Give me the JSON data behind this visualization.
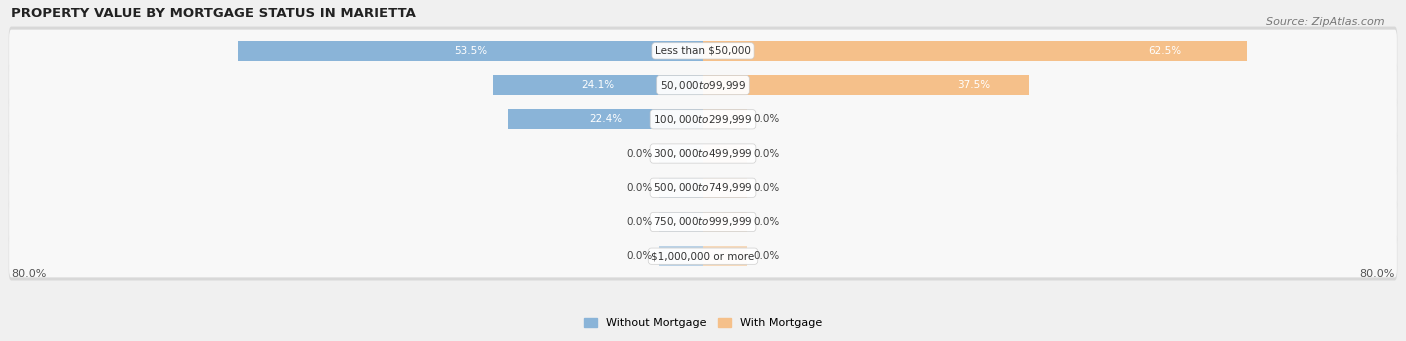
{
  "title": "PROPERTY VALUE BY MORTGAGE STATUS IN MARIETTA",
  "source": "Source: ZipAtlas.com",
  "categories": [
    "Less than $50,000",
    "$50,000 to $99,999",
    "$100,000 to $299,999",
    "$300,000 to $499,999",
    "$500,000 to $749,999",
    "$750,000 to $999,999",
    "$1,000,000 or more"
  ],
  "without_mortgage": [
    53.5,
    24.1,
    22.4,
    0.0,
    0.0,
    0.0,
    0.0
  ],
  "with_mortgage": [
    62.5,
    37.5,
    0.0,
    0.0,
    0.0,
    0.0,
    0.0
  ],
  "color_without": "#8ab4d8",
  "color_with": "#f5c08a",
  "axis_label_left": "80.0%",
  "axis_label_right": "80.0%",
  "xlim": 80.0,
  "bar_height": 0.58,
  "title_fontsize": 9.5,
  "source_fontsize": 8,
  "label_fontsize": 7.5,
  "category_fontsize": 7.5,
  "tick_fontsize": 8,
  "background_color": "#f0f0f0",
  "row_bg_color": "#e4e4e4",
  "row_inner_color": "#fafafa",
  "legend_label_without": "Without Mortgage",
  "legend_label_with": "With Mortgage",
  "stub_size": 5.0
}
